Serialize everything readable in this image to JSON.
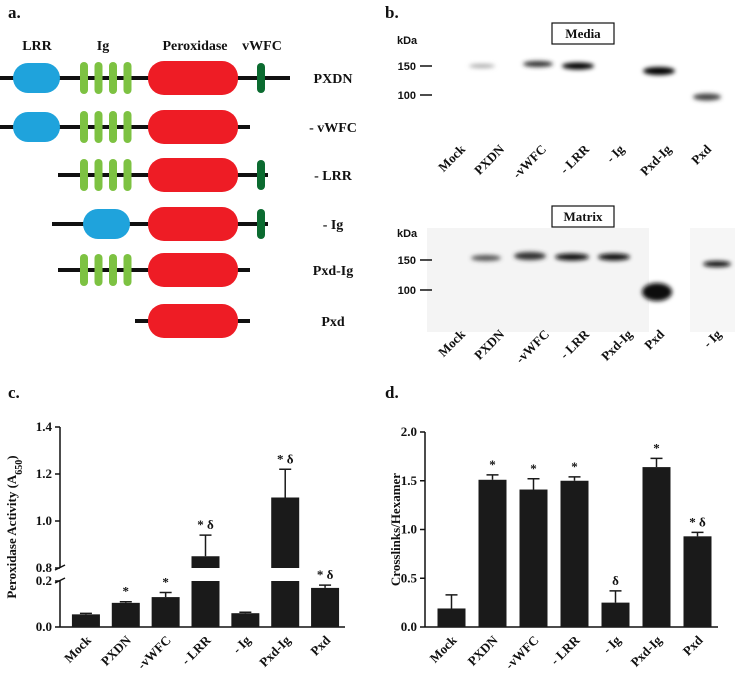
{
  "panel_labels": [
    "a.",
    "b.",
    "c.",
    "d."
  ],
  "domains": {
    "headers": [
      {
        "text": "LRR",
        "color": "#1fa3dc"
      },
      {
        "text": "Ig",
        "color": "#7dc242"
      },
      {
        "text": "Peroxidase",
        "color": "#ee1c25"
      },
      {
        "text": "vWFC",
        "color": "#0b6b30"
      }
    ],
    "constructs": [
      "PXDN",
      "- vWFC",
      "- LRR",
      "- Ig",
      "Pxd-Ig",
      "Pxd"
    ]
  },
  "blots": [
    {
      "title": "Media",
      "unit": "kDa",
      "markers": [
        "150",
        "100"
      ],
      "lanes": [
        "Mock",
        "PXDN",
        "-vWFC",
        "- LRR",
        "- Ig",
        "Pxd-Ig",
        "Pxd"
      ]
    },
    {
      "title": "Matrix",
      "unit": "kDa",
      "markers": [
        "150",
        "100"
      ],
      "lanes": [
        "Mock",
        "PXDN",
        "-vWFC",
        "- LRR",
        "Pxd-Ig",
        "Pxd",
        "- Ig"
      ]
    }
  ],
  "chart_data": [
    {
      "type": "bar",
      "ylabel_parts": [
        "Peroxidase Activity (A",
        "650",
        ")"
      ],
      "categories": [
        "Mock",
        "PXDN",
        "-vWFC",
        "- LRR",
        "- Ig",
        "Pxd-Ig",
        "Pxd"
      ],
      "values": [
        0.055,
        0.105,
        0.13,
        0.85,
        0.06,
        1.1,
        0.17
      ],
      "errors": [
        0.004,
        0.005,
        0.02,
        0.09,
        0.004,
        0.12,
        0.012
      ],
      "annotations": [
        null,
        "*",
        "*",
        "* δ",
        null,
        "* δ",
        "* δ"
      ],
      "color": "#1a1a1a",
      "ylim": [
        0,
        1.4
      ],
      "y_break": [
        0.2,
        0.8
      ],
      "yticks": [
        {
          "value": 0,
          "label": "0.0"
        },
        {
          "value": 0.2,
          "label": "0.2"
        },
        {
          "value": 0.8,
          "label": "0.8"
        },
        {
          "value": 1,
          "label": "1.0"
        },
        {
          "value": 1.2,
          "label": "1.2"
        },
        {
          "value": 1.4,
          "label": "1.4"
        }
      ]
    },
    {
      "type": "bar",
      "ylabel": "Crosslinks/Hexamer",
      "categories": [
        "Mock",
        "PXDN",
        "-vWFC",
        "- LRR",
        "- Ig",
        "Pxd-Ig",
        "Pxd"
      ],
      "values": [
        0.19,
        1.51,
        1.41,
        1.5,
        0.25,
        1.64,
        0.93
      ],
      "errors": [
        0.14,
        0.05,
        0.11,
        0.04,
        0.12,
        0.09,
        0.04
      ],
      "annotations": [
        null,
        "*",
        "*",
        "*",
        "δ",
        "*",
        "* δ"
      ],
      "color": "#1a1a1a",
      "ylim": [
        0,
        2
      ],
      "yticks": [
        {
          "value": 0,
          "label": "0.0"
        },
        {
          "value": 0.5,
          "label": "0.5"
        },
        {
          "value": 1,
          "label": "1.0"
        },
        {
          "value": 1.5,
          "label": "1.5"
        },
        {
          "value": 2,
          "label": "2.0"
        }
      ]
    }
  ]
}
